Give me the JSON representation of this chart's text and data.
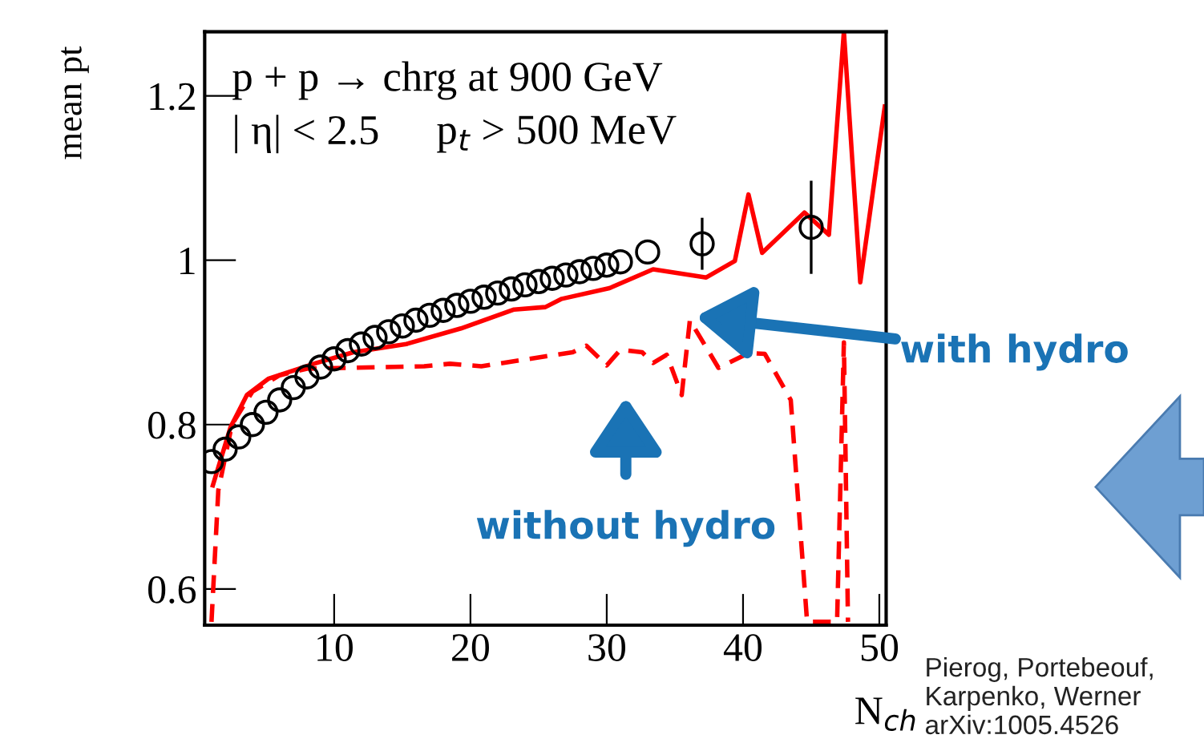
{
  "chart_data": {
    "type": "line",
    "xlabel": "N$_{ch}$",
    "ylabel": "mean pt",
    "xlim": [
      0.5,
      50.5
    ],
    "ylim": [
      0.556,
      1.278
    ],
    "xticks": [
      10,
      20,
      30,
      40,
      50
    ],
    "yticks": [
      0.6,
      0.8,
      1,
      1.2
    ],
    "grid": false,
    "legend": false,
    "series": [
      {
        "type": "line",
        "line_style": "solid",
        "color": "#ff0000",
        "x": [
          1.1,
          2.4,
          3.6,
          5.2,
          8.7,
          11.4,
          15.3,
          19.3,
          23.2,
          25.5,
          26.7,
          30.2,
          33.4,
          37.3,
          39.4,
          40.4,
          41.4,
          44.5,
          46.3,
          47.4,
          48.6,
          50.4
        ],
        "values": [
          0.726,
          0.797,
          0.836,
          0.856,
          0.875,
          0.888,
          0.898,
          0.917,
          0.94,
          0.943,
          0.953,
          0.966,
          0.989,
          0.979,
          0.999,
          1.08,
          1.009,
          1.058,
          1.031,
          1.278,
          0.973,
          1.187
        ]
      },
      {
        "type": "line",
        "line_style": "dashed",
        "color": "#ff0000",
        "x": [
          1.0,
          1.5,
          2.5,
          4,
          6,
          8,
          11,
          16.6,
          18.5,
          20.8,
          27.5,
          28.5,
          30.0,
          31,
          32.6,
          33.4,
          34.4,
          35.5,
          36.1,
          38.2,
          40.4,
          41.6,
          43.5,
          44.7,
          46.9,
          47.4,
          47.7
        ],
        "values": [
          0.56,
          0.72,
          0.8,
          0.84,
          0.86,
          0.868,
          0.869,
          0.871,
          0.874,
          0.871,
          0.888,
          0.896,
          0.872,
          0.891,
          0.888,
          0.875,
          0.885,
          0.836,
          0.927,
          0.869,
          0.887,
          0.886,
          0.83,
          0.56,
          0.56,
          0.9,
          0.56
        ]
      },
      {
        "type": "scatter",
        "marker": "circle",
        "color": "#000000",
        "x": [
          1,
          2,
          3,
          4,
          5,
          6,
          7,
          8,
          9,
          10,
          11,
          12,
          13,
          14,
          15,
          16,
          17,
          18,
          19,
          20,
          21,
          22,
          23,
          24,
          25,
          26,
          27,
          28,
          29,
          30,
          31,
          33,
          37,
          45
        ],
        "values": [
          0.755,
          0.77,
          0.785,
          0.8,
          0.815,
          0.83,
          0.845,
          0.858,
          0.87,
          0.88,
          0.89,
          0.898,
          0.906,
          0.913,
          0.92,
          0.927,
          0.933,
          0.939,
          0.945,
          0.95,
          0.955,
          0.96,
          0.965,
          0.97,
          0.974,
          0.978,
          0.982,
          0.986,
          0.99,
          0.994,
          0.998,
          1.01,
          1.02,
          1.04
        ],
        "errors": [
          null,
          null,
          null,
          null,
          null,
          null,
          null,
          null,
          null,
          null,
          null,
          null,
          null,
          null,
          null,
          null,
          null,
          null,
          null,
          null,
          null,
          null,
          null,
          null,
          null,
          null,
          null,
          null,
          null,
          null,
          null,
          null,
          0.03,
          0.055
        ]
      }
    ],
    "annotations": [
      "p + p → chrg at 900 GeV",
      "| η| < 2.5",
      "p$_{t}$ > 500 MeV",
      "with hydro",
      "without hydro",
      "Pierog, Portebeouf,\nKarpenko, Werner\narXiv:1005.4526"
    ]
  }
}
